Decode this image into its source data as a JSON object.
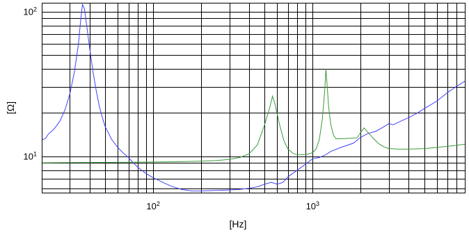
{
  "chart_data": {
    "type": "line",
    "title": "",
    "xlabel": "[Hz]",
    "ylabel": "[Ω]",
    "xscale": "log",
    "yscale": "log",
    "xlim": [
      20,
      9000
    ],
    "ylim": [
      5.6,
      115
    ],
    "grid": true,
    "legend": "none",
    "x_ticks": [
      {
        "value": 100,
        "label": "10",
        "exp": "2"
      },
      {
        "value": 1000,
        "label": "10",
        "exp": "3"
      }
    ],
    "y_ticks": [
      {
        "value": 10,
        "label": "10",
        "exp": "1"
      },
      {
        "value": 100,
        "label": "10",
        "exp": "2"
      }
    ],
    "series": [
      {
        "color": "#4040ff",
        "points": [
          [
            20,
            13.0
          ],
          [
            21,
            13.2
          ],
          [
            22,
            14.2
          ],
          [
            24,
            15.5
          ],
          [
            26,
            17.5
          ],
          [
            28,
            21
          ],
          [
            30,
            27
          ],
          [
            32,
            38
          ],
          [
            34,
            60
          ],
          [
            35,
            85
          ],
          [
            36,
            112
          ],
          [
            37,
            105
          ],
          [
            38,
            85
          ],
          [
            40,
            55
          ],
          [
            42,
            38
          ],
          [
            44,
            28
          ],
          [
            46,
            22
          ],
          [
            48,
            18.5
          ],
          [
            50,
            16
          ],
          [
            55,
            13
          ],
          [
            60,
            11.5
          ],
          [
            65,
            10.5
          ],
          [
            70,
            9.8
          ],
          [
            75,
            9.0
          ],
          [
            80,
            8.4
          ],
          [
            90,
            7.6
          ],
          [
            100,
            7.1
          ],
          [
            115,
            6.6
          ],
          [
            130,
            6.2
          ],
          [
            150,
            5.9
          ],
          [
            175,
            5.75
          ],
          [
            200,
            5.75
          ],
          [
            250,
            5.8
          ],
          [
            300,
            5.85
          ],
          [
            350,
            5.9
          ],
          [
            400,
            6.0
          ],
          [
            450,
            6.15
          ],
          [
            500,
            6.4
          ],
          [
            550,
            6.6
          ],
          [
            600,
            6.4
          ],
          [
            650,
            6.6
          ],
          [
            700,
            7.2
          ],
          [
            800,
            8.0
          ],
          [
            900,
            8.8
          ],
          [
            1000,
            9.6
          ],
          [
            1100,
            9.8
          ],
          [
            1200,
            10.2
          ],
          [
            1300,
            10.8
          ],
          [
            1500,
            11.5
          ],
          [
            1800,
            12.3
          ],
          [
            2000,
            13.5
          ],
          [
            2200,
            14.3
          ],
          [
            2500,
            14.9
          ],
          [
            2800,
            16.0
          ],
          [
            3000,
            16.8
          ],
          [
            3200,
            16.5
          ],
          [
            3500,
            17.3
          ],
          [
            4000,
            18.5
          ],
          [
            4500,
            19.8
          ],
          [
            5000,
            21.3
          ],
          [
            6000,
            24
          ],
          [
            7000,
            27.5
          ],
          [
            8000,
            30.5
          ],
          [
            9000,
            33
          ]
        ]
      },
      {
        "color": "#3a9a3a",
        "points": [
          [
            20,
            9.0
          ],
          [
            30,
            9.03
          ],
          [
            50,
            9.06
          ],
          [
            80,
            9.1
          ],
          [
            100,
            9.12
          ],
          [
            150,
            9.18
          ],
          [
            200,
            9.25
          ],
          [
            250,
            9.35
          ],
          [
            300,
            9.5
          ],
          [
            350,
            9.8
          ],
          [
            400,
            10.4
          ],
          [
            450,
            12.0
          ],
          [
            500,
            16.5
          ],
          [
            540,
            22
          ],
          [
            560,
            26
          ],
          [
            580,
            23
          ],
          [
            620,
            16.5
          ],
          [
            660,
            12.8
          ],
          [
            700,
            11.2
          ],
          [
            760,
            10.4
          ],
          [
            820,
            10.2
          ],
          [
            900,
            10.3
          ],
          [
            950,
            10.4
          ],
          [
            1000,
            10.6
          ],
          [
            1050,
            11.2
          ],
          [
            1100,
            13.0
          ],
          [
            1150,
            18
          ],
          [
            1190,
            28
          ],
          [
            1210,
            40
          ],
          [
            1230,
            32
          ],
          [
            1260,
            22
          ],
          [
            1300,
            16.5
          ],
          [
            1350,
            14.0
          ],
          [
            1400,
            13.2
          ],
          [
            1500,
            13.2
          ],
          [
            1700,
            13.3
          ],
          [
            1900,
            13.4
          ],
          [
            2000,
            14.6
          ],
          [
            2100,
            15.7
          ],
          [
            2200,
            14.8
          ],
          [
            2400,
            13.3
          ],
          [
            2600,
            12.2
          ],
          [
            2800,
            11.6
          ],
          [
            3000,
            11.3
          ],
          [
            3500,
            11.2
          ],
          [
            4000,
            11.2
          ],
          [
            5000,
            11.3
          ],
          [
            6000,
            11.5
          ],
          [
            7000,
            11.7
          ],
          [
            8000,
            11.9
          ],
          [
            9000,
            12.1
          ]
        ]
      }
    ]
  }
}
